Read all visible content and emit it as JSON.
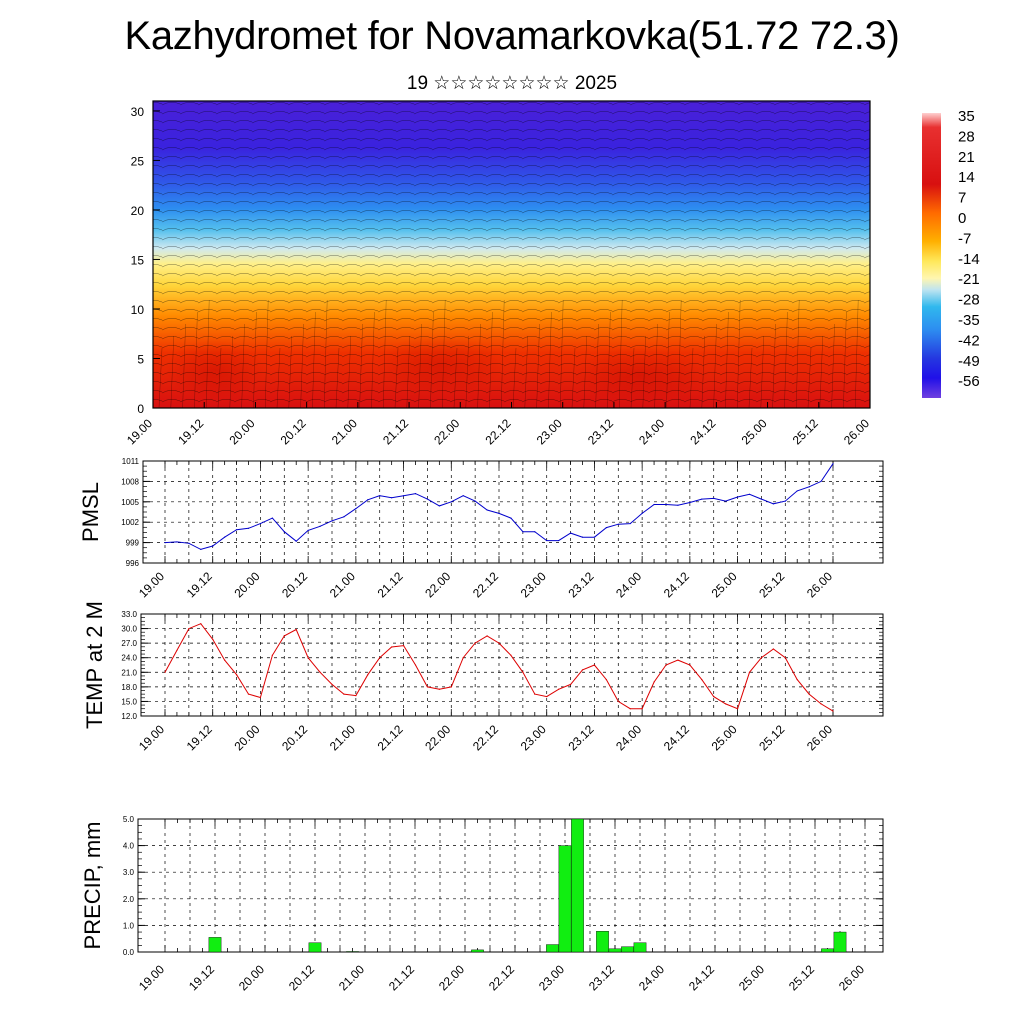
{
  "header": {
    "title": "Kazhydromet for Novamarkovka(51.72 72.3)",
    "subtitle": "19 ☆☆☆☆☆☆☆☆ 2025"
  },
  "time_ticks": [
    "19.00",
    "19.12",
    "20.00",
    "20.12",
    "21.00",
    "21.12",
    "22.00",
    "22.12",
    "23.00",
    "23.12",
    "24.00",
    "24.12",
    "25.00",
    "25.12",
    "26.00"
  ],
  "colors": {
    "pmsl_line": "#0000cc",
    "temp_line": "#dd0000",
    "precip_bar": "#11ee11"
  },
  "chart_data": [
    {
      "type": "heatmap",
      "name": "cross-section",
      "x_ticks": [
        "19.00",
        "19.12",
        "20.00",
        "20.12",
        "21.00",
        "21.12",
        "22.00",
        "22.12",
        "23.00",
        "23.12",
        "24.00",
        "24.12",
        "25.00",
        "25.12",
        "26.00"
      ],
      "y_ticks": [
        0,
        5,
        10,
        15,
        20,
        25,
        30
      ],
      "ylim": [
        0,
        31
      ],
      "colorbar_labels": [
        "35",
        "28",
        "21",
        "14",
        "7",
        "0",
        "-7",
        "-14",
        "-21",
        "-28",
        "-35",
        "-42",
        "-49",
        "-56"
      ],
      "colorbar_range": [
        -63,
        42
      ]
    },
    {
      "type": "line",
      "name": "pmsl",
      "ylabel": "PMSL",
      "ylim": [
        996,
        1011
      ],
      "y_ticks": [
        "996",
        "999",
        "1002",
        "1005",
        "1008",
        "1011"
      ],
      "values": [
        999.0,
        999.1,
        998.9,
        998.0,
        998.5,
        999.8,
        1000.9,
        1001.1,
        1001.8,
        1002.6,
        1000.6,
        999.2,
        1000.8,
        1001.4,
        1002.2,
        1002.8,
        1004.0,
        1005.3,
        1005.9,
        1005.6,
        1005.9,
        1006.2,
        1005.4,
        1004.4,
        1005.0,
        1005.9,
        1005.1,
        1003.8,
        1003.3,
        1002.6,
        1000.6,
        1000.6,
        999.3,
        999.3,
        1000.4,
        999.8,
        999.8,
        1001.2,
        1001.7,
        1001.8,
        1003.3,
        1004.6,
        1004.6,
        1004.5,
        1004.9,
        1005.4,
        1005.5,
        1005.1,
        1005.7,
        1006.1,
        1005.4,
        1004.7,
        1005.1,
        1006.6,
        1007.2,
        1008.0,
        1010.6
      ]
    },
    {
      "type": "line",
      "name": "temperature",
      "ylabel": "TEMP at 2 M",
      "ylim": [
        12,
        33
      ],
      "y_ticks": [
        "12.0",
        "15.0",
        "18.0",
        "21.0",
        "24.0",
        "27.0",
        "30.0",
        "33.0"
      ],
      "values": [
        21.0,
        25.5,
        30.0,
        31.0,
        27.8,
        23.5,
        20.5,
        16.5,
        15.8,
        24.5,
        28.5,
        29.8,
        24.0,
        21.0,
        18.5,
        16.5,
        16.2,
        20.5,
        24.0,
        26.2,
        26.5,
        22.5,
        18.0,
        17.5,
        18.0,
        24.0,
        27.0,
        28.5,
        27.0,
        24.5,
        21.0,
        16.5,
        16.0,
        17.5,
        18.5,
        21.5,
        22.5,
        19.5,
        15.0,
        13.5,
        13.5,
        19.0,
        22.5,
        23.5,
        22.5,
        19.5,
        16.0,
        14.5,
        13.5,
        21.0,
        24.0,
        25.8,
        24.0,
        19.5,
        16.5,
        14.5,
        13.0
      ]
    },
    {
      "type": "bar",
      "name": "precipitation",
      "ylabel": "PRECIP, mm",
      "ylim": [
        0,
        5
      ],
      "y_ticks": [
        "0.0",
        "1.0",
        "2.0",
        "3.0",
        "4.0",
        "5.0"
      ],
      "values": [
        0,
        0,
        0,
        0,
        0.55,
        0,
        0,
        0,
        0,
        0,
        0,
        0,
        0.35,
        0,
        0,
        0.02,
        0,
        0,
        0,
        0,
        0,
        0,
        0,
        0,
        0,
        0.08,
        0,
        0,
        0,
        0,
        0,
        0.28,
        4.0,
        5.0,
        0,
        0.78,
        0.12,
        0.2,
        0.35,
        0,
        0,
        0,
        0,
        0,
        0,
        0,
        0,
        0,
        0,
        0,
        0,
        0,
        0,
        0.12,
        0.75,
        0,
        0
      ]
    }
  ]
}
